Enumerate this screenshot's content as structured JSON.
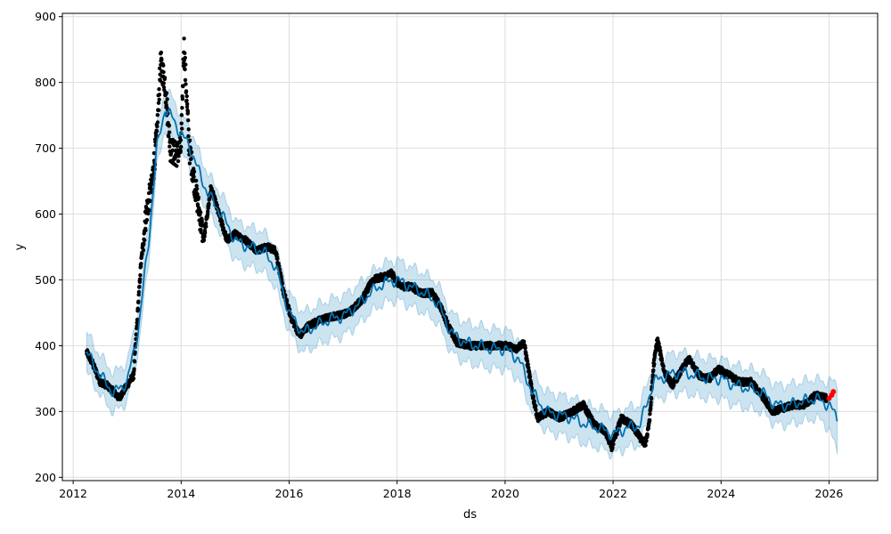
{
  "chart_data": {
    "type": "line",
    "title": "",
    "xlabel": "ds",
    "ylabel": "y",
    "xlim": [
      2011.8,
      2026.9
    ],
    "ylim": [
      195,
      905
    ],
    "grid": true,
    "x_ticks": [
      2012,
      2014,
      2016,
      2018,
      2020,
      2022,
      2024,
      2026
    ],
    "x_tick_labels": [
      "2012",
      "2014",
      "2016",
      "2018",
      "2020",
      "2022",
      "2024",
      "2026"
    ],
    "y_ticks": [
      200,
      300,
      400,
      500,
      600,
      700,
      800,
      900
    ],
    "y_tick_labels": [
      "200",
      "300",
      "400",
      "500",
      "600",
      "700",
      "800",
      "900"
    ],
    "colors": {
      "observed": "#000000",
      "recent": "#ff0000",
      "forecast": "#0072b2",
      "interval": "#0072b2",
      "grid": "#dddddd"
    },
    "forecast": {
      "x": [
        2012.25,
        2012.5,
        2012.75,
        2013.0,
        2013.2,
        2013.4,
        2013.55,
        2013.7,
        2013.85,
        2014.0,
        2014.15,
        2014.3,
        2014.5,
        2014.75,
        2015.0,
        2015.25,
        2015.5,
        2015.75,
        2016.0,
        2016.25,
        2016.5,
        2016.75,
        2017.0,
        2017.25,
        2017.5,
        2017.75,
        2018.0,
        2018.25,
        2018.5,
        2018.75,
        2019.0,
        2019.25,
        2019.5,
        2019.75,
        2020.0,
        2020.25,
        2020.5,
        2020.75,
        2021.0,
        2021.25,
        2021.5,
        2021.75,
        2022.0,
        2022.25,
        2022.5,
        2022.75,
        2023.0,
        2023.25,
        2023.5,
        2023.75,
        2024.0,
        2024.25,
        2024.5,
        2024.75,
        2025.0,
        2025.25,
        2025.5,
        2025.75,
        2026.0,
        2026.15
      ],
      "yhat": [
        390,
        355,
        328,
        345,
        420,
        560,
        700,
        760,
        745,
        720,
        705,
        670,
        630,
        600,
        560,
        550,
        545,
        520,
        450,
        420,
        430,
        440,
        445,
        460,
        480,
        495,
        500,
        490,
        480,
        465,
        420,
        405,
        400,
        395,
        395,
        380,
        330,
        300,
        295,
        290,
        280,
        275,
        265,
        275,
        280,
        345,
        355,
        360,
        355,
        350,
        350,
        340,
        335,
        330,
        310,
        310,
        315,
        320,
        310,
        290
      ],
      "interval_half_width": 30
    },
    "observed_series": [
      {
        "x": [
          2012.25,
          2012.35,
          2012.5,
          2012.62,
          2012.75,
          2012.85,
          2013.0,
          2013.12,
          2013.25,
          2013.35,
          2013.45,
          2013.55,
          2013.62,
          2013.7,
          2013.8,
          2013.9,
          2014.0,
          2014.05,
          2014.15,
          2014.3,
          2014.42,
          2014.55,
          2014.7,
          2014.85,
          2015.0,
          2015.2,
          2015.4,
          2015.6,
          2015.75,
          2015.9,
          2016.05,
          2016.2,
          2016.35,
          2016.6,
          2016.85,
          2017.1,
          2017.35,
          2017.55,
          2017.75,
          2017.9,
          2018.05,
          2018.25,
          2018.45,
          2018.65,
          2018.8,
          2018.95,
          2019.1,
          2019.35,
          2019.6,
          2019.85,
          2020.05,
          2020.2,
          2020.35,
          2020.5,
          2020.6,
          2020.8,
          2021.0,
          2021.25,
          2021.45,
          2021.65,
          2021.85,
          2021.98,
          2022.15,
          2022.35,
          2022.5,
          2022.6,
          2022.68,
          2022.75,
          2022.82,
          2022.95,
          2023.1,
          2023.25,
          2023.4,
          2023.6,
          2023.8,
          2023.95,
          2024.15,
          2024.35,
          2024.55,
          2024.75,
          2024.95,
          2025.15,
          2025.35,
          2025.55,
          2025.75,
          2025.95
        ],
        "y": [
          390,
          375,
          345,
          340,
          330,
          320,
          340,
          355,
          520,
          600,
          640,
          720,
          830,
          800,
          700,
          690,
          700,
          860,
          700,
          620,
          560,
          640,
          600,
          560,
          570,
          560,
          545,
          550,
          545,
          480,
          440,
          415,
          430,
          440,
          445,
          450,
          470,
          500,
          505,
          510,
          490,
          490,
          480,
          480,
          460,
          430,
          405,
          400,
          400,
          400,
          400,
          395,
          405,
          330,
          290,
          300,
          290,
          300,
          310,
          280,
          270,
          245,
          290,
          280,
          260,
          250,
          290,
          370,
          410,
          360,
          340,
          360,
          380,
          355,
          350,
          365,
          355,
          345,
          345,
          325,
          300,
          305,
          310,
          310,
          325,
          320
        ]
      }
    ],
    "recent_points": {
      "x": [
        2026.0,
        2026.05,
        2026.08
      ],
      "y": [
        320,
        325,
        330
      ]
    }
  }
}
